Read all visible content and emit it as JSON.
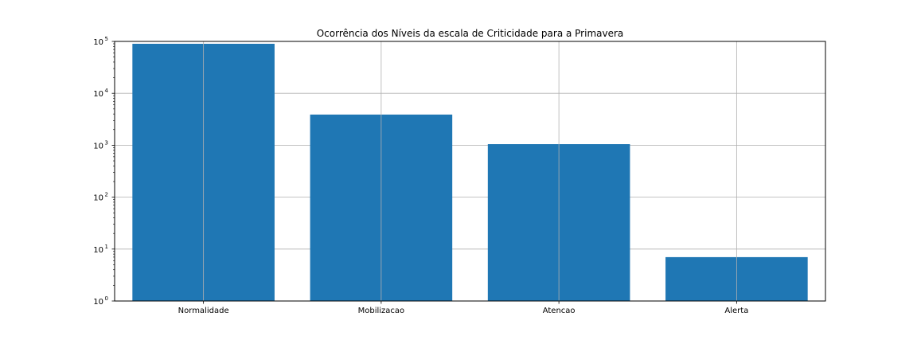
{
  "chart_data": {
    "type": "bar",
    "title": "Ocorrência dos Níveis da escala de Criticidade para a Primavera",
    "xlabel": "",
    "ylabel": "",
    "categories": [
      "Normalidade",
      "Mobilizacao",
      "Atencao",
      "Alerta"
    ],
    "values": [
      90000,
      3900,
      1050,
      7
    ],
    "yscale": "log",
    "ylim": [
      1,
      100000
    ],
    "yticks": [
      {
        "base": "10",
        "exp": "0"
      },
      {
        "base": "10",
        "exp": "1"
      },
      {
        "base": "10",
        "exp": "2"
      },
      {
        "base": "10",
        "exp": "3"
      },
      {
        "base": "10",
        "exp": "4"
      },
      {
        "base": "10",
        "exp": "5"
      }
    ],
    "grid": true,
    "bar_color": "#1f77b4",
    "grid_color": "#b0b0b0"
  }
}
